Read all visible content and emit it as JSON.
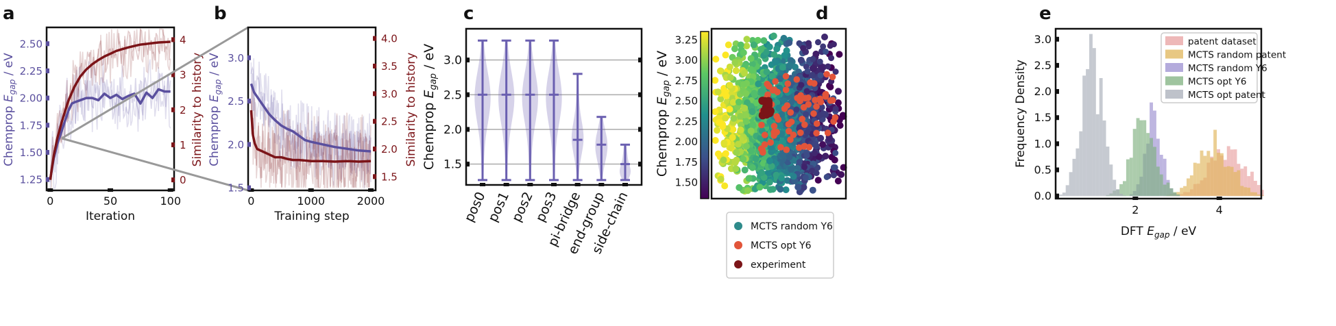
{
  "chart_data": [
    {
      "panel": "a",
      "type": "line",
      "xlabel": "Iteration",
      "ylabel": "Chemprop E_gap / eV",
      "y2label": "Similarity to history",
      "xlim": [
        -3,
        103
      ],
      "ylim": [
        1.15,
        2.65
      ],
      "y2lim": [
        -0.3,
        4.35
      ],
      "xticks": [
        0,
        50,
        100
      ],
      "yticks": [
        1.25,
        1.5,
        1.75,
        2.0,
        2.25,
        2.5
      ],
      "ytick_labels": [
        "1.25",
        "1.50",
        "1.75",
        "2.00",
        "2.25",
        "2.50"
      ],
      "y2ticks": [
        0,
        1,
        2,
        3,
        4
      ],
      "series": [
        {
          "axis": "left",
          "kind": "mean",
          "color": "#5a4f9e",
          "x": [
            0,
            3,
            6,
            9,
            12,
            15,
            18,
            20,
            25,
            30,
            35,
            40,
            45,
            50,
            55,
            60,
            65,
            70,
            75,
            80,
            85,
            90,
            95,
            100
          ],
          "values": [
            1.25,
            1.45,
            1.58,
            1.68,
            1.78,
            1.88,
            1.95,
            1.96,
            1.98,
            2.0,
            2.0,
            1.98,
            2.04,
            2.0,
            2.03,
            1.99,
            2.02,
            2.04,
            1.95,
            2.05,
            2.0,
            2.08,
            2.06,
            2.06
          ]
        },
        {
          "axis": "right",
          "kind": "mean",
          "color": "#7b1418",
          "x": [
            0,
            3,
            6,
            10,
            15,
            20,
            25,
            30,
            35,
            40,
            45,
            50,
            55,
            60,
            65,
            70,
            75,
            80,
            85,
            90,
            95,
            100
          ],
          "values": [
            0.0,
            0.7,
            1.2,
            1.7,
            2.25,
            2.65,
            2.95,
            3.15,
            3.3,
            3.42,
            3.52,
            3.6,
            3.68,
            3.73,
            3.78,
            3.82,
            3.86,
            3.88,
            3.9,
            3.92,
            3.93,
            3.94
          ]
        }
      ]
    },
    {
      "panel": "b",
      "type": "line",
      "xlabel": "Training step",
      "ylabel": "Chemprop E_gap / eV",
      "y2label": "Similarity to history",
      "xlim": [
        -50,
        2080
      ],
      "ylim": [
        1.47,
        3.35
      ],
      "y2lim": [
        1.25,
        4.2
      ],
      "xticks": [
        0,
        1000,
        2000
      ],
      "yticks": [
        1.5,
        2.0,
        2.5,
        3.0
      ],
      "ytick_labels": [
        "1.5",
        "2.0",
        "2.5",
        "3.0"
      ],
      "y2ticks": [
        1.5,
        2.0,
        2.5,
        3.0,
        3.5,
        4.0
      ],
      "y2tick_labels": [
        "1.5",
        "2.0",
        "2.5",
        "3.0",
        "3.5",
        "4.0"
      ],
      "series": [
        {
          "axis": "left",
          "kind": "mean",
          "color": "#5a4f9e",
          "x": [
            0,
            50,
            100,
            200,
            300,
            400,
            500,
            600,
            700,
            800,
            900,
            1000,
            1200,
            1400,
            1600,
            1800,
            2000
          ],
          "values": [
            2.7,
            2.6,
            2.55,
            2.45,
            2.35,
            2.28,
            2.22,
            2.18,
            2.15,
            2.1,
            2.05,
            2.03,
            2.0,
            1.97,
            1.95,
            1.93,
            1.92
          ]
        },
        {
          "axis": "right",
          "kind": "mean",
          "color": "#7b1418",
          "x": [
            0,
            30,
            60,
            100,
            200,
            300,
            400,
            500,
            600,
            700,
            800,
            1000,
            1200,
            1400,
            1600,
            1800,
            2000
          ],
          "values": [
            2.7,
            2.25,
            2.1,
            2.0,
            1.95,
            1.9,
            1.85,
            1.85,
            1.82,
            1.8,
            1.8,
            1.78,
            1.78,
            1.77,
            1.78,
            1.77,
            1.78
          ]
        }
      ]
    },
    {
      "panel": "c",
      "type": "violin",
      "ylabel": "Chemprop E_gap / eV",
      "categories": [
        "pos0",
        "pos1",
        "pos2",
        "pos3",
        "pi-bridge",
        "end-group",
        "side-chain"
      ],
      "ylim": [
        1.2,
        3.45
      ],
      "yticks": [
        1.5,
        2.0,
        2.5,
        3.0
      ],
      "ytick_labels": [
        "1.5",
        "2.0",
        "2.5",
        "3.0"
      ],
      "grid": true,
      "min": [
        1.27,
        1.27,
        1.27,
        1.27,
        1.27,
        1.27,
        1.27
      ],
      "max": [
        3.28,
        3.28,
        3.28,
        3.28,
        2.8,
        2.18,
        1.78
      ],
      "median": [
        2.5,
        2.5,
        2.5,
        2.5,
        1.85,
        1.78,
        1.5
      ]
    },
    {
      "panel": "d",
      "type": "scatter",
      "ylabel": "Chemprop E_gap / eV",
      "colorbar_ticks": [
        1.5,
        1.75,
        2.0,
        2.25,
        2.5,
        2.75,
        3.0,
        3.25
      ],
      "colorbar_tick_labels": [
        "1.50",
        "1.75",
        "2.00",
        "2.25",
        "2.50",
        "2.75",
        "3.00",
        "3.25"
      ],
      "colorbar_lim": [
        1.3,
        3.35
      ],
      "legend": "bottom-outside",
      "series": [
        {
          "name": "MCTS random Y6",
          "color": "#2e8b8b",
          "marker": "circle"
        },
        {
          "name": "MCTS opt Y6",
          "color": "#e2553a",
          "marker": "circle"
        },
        {
          "name": "experiment",
          "color": "#7b1418",
          "marker": "circle"
        }
      ]
    },
    {
      "panel": "e",
      "type": "histogram",
      "xlabel": "DFT E_gap / eV",
      "ylabel": "Frequency Density",
      "xlim": [
        0.1,
        5.0
      ],
      "ylim": [
        -0.05,
        3.2
      ],
      "xticks": [
        2,
        4
      ],
      "xtick_labels": [
        "2",
        "4"
      ],
      "yticks": [
        0.0,
        0.5,
        1.0,
        1.5,
        2.0,
        2.5,
        3.0
      ],
      "ytick_labels": [
        "0.0",
        "0.5",
        "1.0",
        "1.5",
        "2.0",
        "2.5",
        "3.0"
      ],
      "legend": "top-right",
      "series": [
        {
          "name": "patent dataset",
          "color": "#e8a0a0",
          "center": 4.2,
          "spread": 0.45,
          "peak": 0.9
        },
        {
          "name": "MCTS random patent",
          "color": "#e0b55a",
          "center": 3.9,
          "spread": 0.4,
          "peak": 1.1
        },
        {
          "name": "MCTS random Y6",
          "color": "#9b8fd0",
          "center": 2.45,
          "spread": 0.2,
          "peak": 1.6
        },
        {
          "name": "MCTS opt Y6",
          "color": "#7fb07f",
          "center": 2.2,
          "spread": 0.3,
          "peak": 1.45
        },
        {
          "name": "MCTS opt patent",
          "color": "#a8aeb8",
          "center": 0.95,
          "spread": 0.25,
          "peak": 3.05
        }
      ]
    }
  ],
  "panel_labels": [
    "a",
    "b",
    "c",
    "d",
    "e"
  ]
}
